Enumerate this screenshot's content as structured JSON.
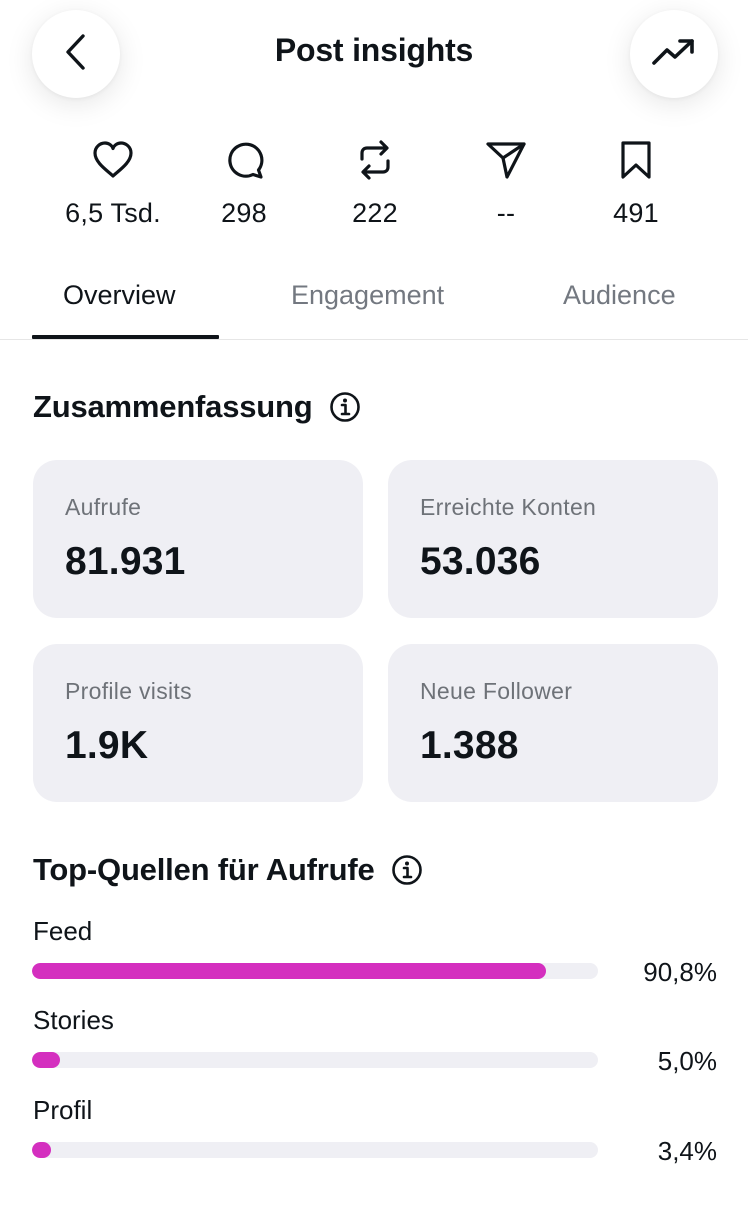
{
  "header": {
    "title": "Post insights",
    "back_icon": "chevron-left-icon",
    "trend_icon": "trending-up-icon"
  },
  "stats": [
    {
      "icon": "heart-icon",
      "value": "6,5 Tsd."
    },
    {
      "icon": "comment-icon",
      "value": "298"
    },
    {
      "icon": "repost-icon",
      "value": "222"
    },
    {
      "icon": "send-icon",
      "value": "--"
    },
    {
      "icon": "bookmark-icon",
      "value": "491"
    }
  ],
  "tabs": [
    {
      "label": "Overview",
      "active": true
    },
    {
      "label": "Engagement",
      "active": false
    },
    {
      "label": "Audience",
      "active": false
    }
  ],
  "summary": {
    "title": "Zusammenfassung",
    "cards": [
      {
        "label": "Aufrufe",
        "value": "81.931"
      },
      {
        "label": "Erreichte Konten",
        "value": "53.036"
      },
      {
        "label": "Profile visits",
        "value": "1.9K"
      },
      {
        "label": "Neue Follower",
        "value": "1.388"
      }
    ]
  },
  "sources": {
    "title": "Top-Quellen für Aufrufe",
    "items": [
      {
        "label": "Feed",
        "percent_text": "90,8%",
        "fill_fraction": 0.908
      },
      {
        "label": "Stories",
        "percent_text": "5,0%",
        "fill_fraction": 0.05
      },
      {
        "label": "Profil",
        "percent_text": "3,4%",
        "fill_fraction": 0.034
      }
    ]
  },
  "colors": {
    "accent_bar": "#d42fbf",
    "card_bg": "#efeff4",
    "text_primary": "#0f1419",
    "text_secondary": "#6e7278"
  }
}
